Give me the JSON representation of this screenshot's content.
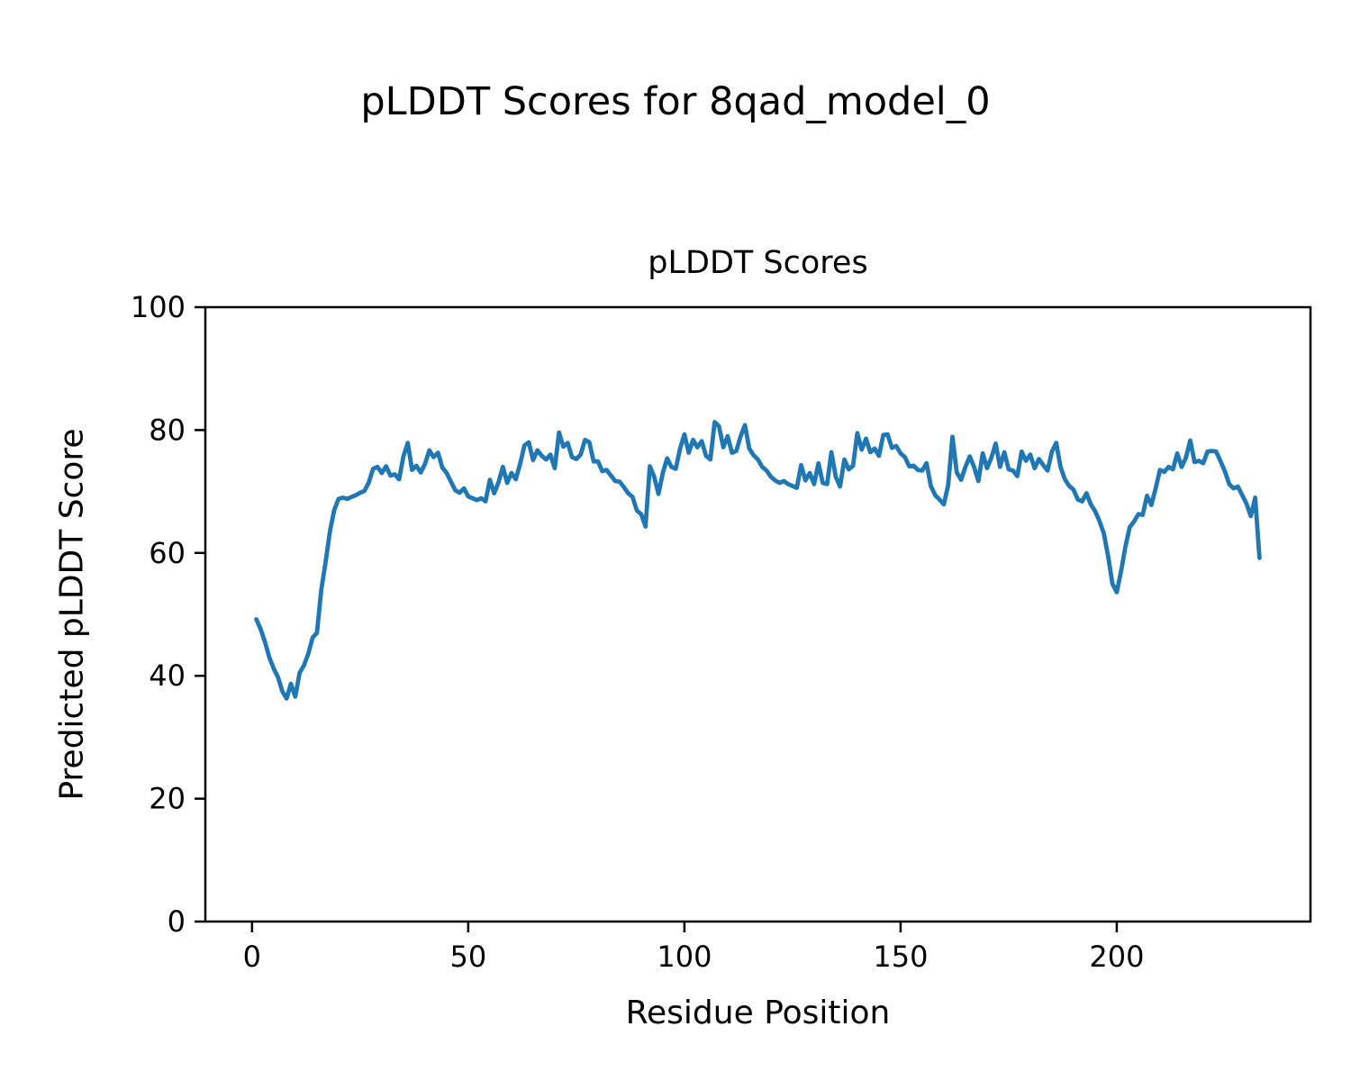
{
  "figure": {
    "suptitle": "pLDDT Scores for 8qad_model_0",
    "background_color": "#ffffff",
    "text_color": "#000000"
  },
  "chart_data": {
    "type": "line",
    "title": "pLDDT Scores",
    "xlabel": "Residue Position",
    "ylabel": "Predicted pLDDT Score",
    "legend": "none",
    "grid": false,
    "line_color": "#1f77b4",
    "axes_color": "#000000",
    "xlim": [
      -10.8,
      244.8
    ],
    "ylim": [
      0,
      100
    ],
    "xticks": [
      0,
      50,
      100,
      150,
      200
    ],
    "yticks": [
      0,
      20,
      40,
      60,
      80,
      100
    ],
    "x_start": 1,
    "x_step": 1,
    "values": [
      49.2,
      47.6,
      45.5,
      43.0,
      41.2,
      39.8,
      37.5,
      36.3,
      38.7,
      36.6,
      40.5,
      41.7,
      43.6,
      46.2,
      47.0,
      54.0,
      58.5,
      63.5,
      67.0,
      68.8,
      69.0,
      68.8,
      69.1,
      69.4,
      69.8,
      70.1,
      71.5,
      73.7,
      74.0,
      73.0,
      74.1,
      72.6,
      72.8,
      72.0,
      75.7,
      77.9,
      73.5,
      74.2,
      73.1,
      74.5,
      76.7,
      75.6,
      76.3,
      73.9,
      73.0,
      71.6,
      70.2,
      69.8,
      70.5,
      69.2,
      68.9,
      68.6,
      68.9,
      68.4,
      71.9,
      69.7,
      71.5,
      74.0,
      71.4,
      73.0,
      72.0,
      74.5,
      77.5,
      78.0,
      75.1,
      76.7,
      75.8,
      75.2,
      76.0,
      73.8,
      79.6,
      77.3,
      77.9,
      75.6,
      75.3,
      76.0,
      78.4,
      78.0,
      74.9,
      74.9,
      73.3,
      73.5,
      72.6,
      71.7,
      71.6,
      70.7,
      69.7,
      69.1,
      66.9,
      66.3,
      64.3,
      74.1,
      72.4,
      69.6,
      73.0,
      75.4,
      74.0,
      73.7,
      77.0,
      79.3,
      76.3,
      78.4,
      77.2,
      78.2,
      75.8,
      75.2,
      81.3,
      80.6,
      77.2,
      79.0,
      76.3,
      76.6,
      79.0,
      80.8,
      77.0,
      75.9,
      75.2,
      74.0,
      73.4,
      72.4,
      71.8,
      71.4,
      71.7,
      71.2,
      70.9,
      70.6,
      74.3,
      71.8,
      73.0,
      71.2,
      74.6,
      71.4,
      71.2,
      76.4,
      72.4,
      70.8,
      75.2,
      73.6,
      74.2,
      79.5,
      76.8,
      78.6,
      76.4,
      77.0,
      75.8,
      79.2,
      79.3,
      77.1,
      77.4,
      76.2,
      75.6,
      74.1,
      74.2,
      73.5,
      73.4,
      74.6,
      70.9,
      69.4,
      68.7,
      67.9,
      71.0,
      78.9,
      73.1,
      71.9,
      74.0,
      75.7,
      74.0,
      71.7,
      76.2,
      73.8,
      75.5,
      77.8,
      74.0,
      76.4,
      73.6,
      73.4,
      72.5,
      76.5,
      75.0,
      76.0,
      73.8,
      75.3,
      74.3,
      73.4,
      76.5,
      77.9,
      74.0,
      72.0,
      70.9,
      70.3,
      68.7,
      68.4,
      69.7,
      67.9,
      66.8,
      65.2,
      63.2,
      59.5,
      55.0,
      53.6,
      57.0,
      61.0,
      64.2,
      65.1,
      66.3,
      66.2,
      69.3,
      67.8,
      70.5,
      73.5,
      73.2,
      74.0,
      73.6,
      76.2,
      74.0,
      75.5,
      78.3,
      74.8,
      75.0,
      74.6,
      76.5,
      76.6,
      76.5,
      74.9,
      73.3,
      71.2,
      70.5,
      70.8,
      69.4,
      68.0,
      66.0,
      69.0,
      59.2
    ]
  }
}
